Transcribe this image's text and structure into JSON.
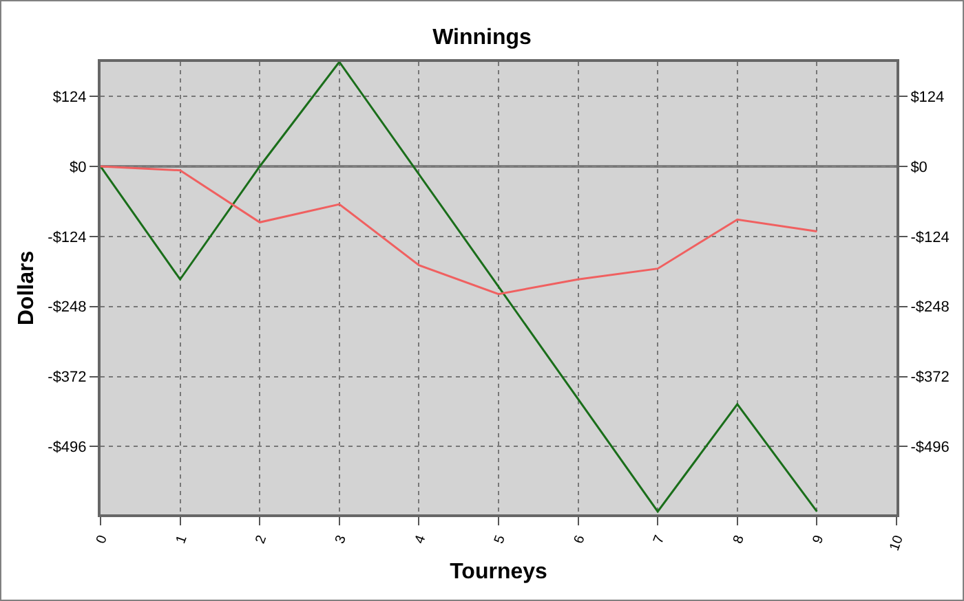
{
  "chart_data": {
    "type": "line",
    "title": "Winnings",
    "xlabel": "Tourneys",
    "ylabel": "Dollars",
    "x": [
      0,
      1,
      2,
      3,
      4,
      5,
      6,
      7,
      8,
      9
    ],
    "series": [
      {
        "color": "#1a6e1a",
        "values": [
          0,
          -200,
          0,
          185,
          -14,
          -213,
          -412,
          -611,
          -421,
          -611
        ]
      },
      {
        "color": "#f06060",
        "values": [
          0,
          -7,
          -99,
          -67,
          -175,
          -226,
          -200,
          -181,
          -94,
          -115
        ]
      }
    ],
    "xlim": [
      0,
      10
    ],
    "xticks": [
      0,
      1,
      2,
      3,
      4,
      5,
      6,
      7,
      8,
      9,
      10
    ],
    "ylim": [
      -616,
      185
    ],
    "yticks": [
      {
        "value": 124,
        "label": "$124"
      },
      {
        "value": 0,
        "label": "$0"
      },
      {
        "value": -124,
        "label": "-$124"
      },
      {
        "value": -248,
        "label": "-$248"
      },
      {
        "value": -372,
        "label": "-$372"
      },
      {
        "value": -496,
        "label": "-$496"
      }
    ],
    "y2lim": [
      -616,
      185
    ],
    "y2ticks": [
      {
        "value": 124,
        "label": "$124"
      },
      {
        "value": 0,
        "label": "$0"
      },
      {
        "value": -124,
        "label": "-$124"
      },
      {
        "value": -248,
        "label": "-$248"
      },
      {
        "value": -372,
        "label": "-$372"
      },
      {
        "value": -496,
        "label": "-$496"
      }
    ],
    "ref_lines": [
      {
        "axis": "y",
        "value": 0,
        "color": "#808080"
      }
    ],
    "grid": true,
    "marker": "none",
    "line_style": "solid"
  }
}
